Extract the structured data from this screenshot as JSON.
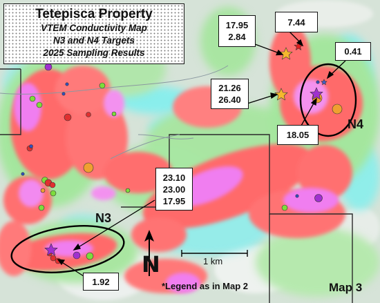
{
  "title": {
    "main": "Tetepisca Property",
    "line1": "VTEM Conductivity Map",
    "line2": "N3 and N4 Targets",
    "line3": "2025 Sampling Results"
  },
  "targets": {
    "n3": "N3",
    "n4": "N4"
  },
  "sample_labels": {
    "top_pair": [
      "17.95",
      "2.84"
    ],
    "red_star": "7.44",
    "mid_pair": [
      "21.26",
      "26.40"
    ],
    "n4_top": "0.41",
    "n4_bottom": "18.05",
    "n3_triple": [
      "23.10",
      "23.00",
      "17.95"
    ],
    "n3_bottom": "1.92"
  },
  "scale_bar": {
    "label": "1 km"
  },
  "north_arrow": {
    "label": "N"
  },
  "legend_note": "*Legend as in Map 2",
  "map_label": "Map 3",
  "colors": {
    "background": "#d7e4d9",
    "cyan": "#7cf0f0",
    "green": "#a4e69e",
    "red": "#ff6b6b",
    "pink": "#ff93a3",
    "magenta": "#f07ef0",
    "star_gold": "#f5b82e",
    "star_red": "#e02020",
    "star_purple": "#a030d0"
  }
}
